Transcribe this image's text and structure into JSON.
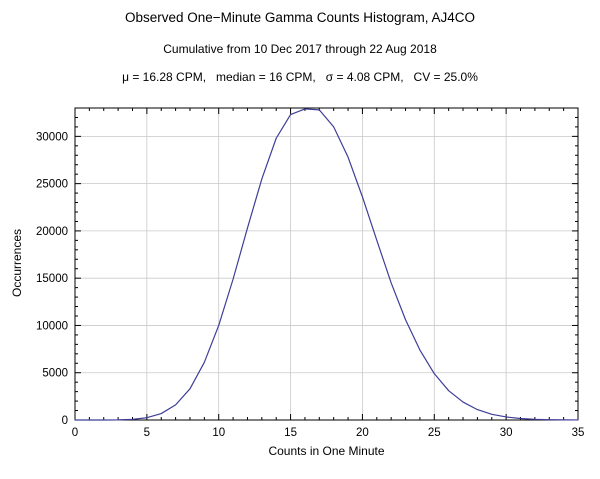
{
  "figure": {
    "background": "#ffffff"
  },
  "chart_data": {
    "type": "line",
    "title": "Observed One−Minute Gamma Counts Histogram, AJ4CO",
    "subtitle": "Cumulative from 10 Dec 2017 through 22 Aug 2018",
    "stats_line": "μ = 16.28 CPM,   median = 16 CPM,   σ = 4.08 CPM,   CV = 25.0%",
    "xlabel": "Counts in One Minute",
    "ylabel": "Occurrences",
    "xlim": [
      0,
      35
    ],
    "ylim": [
      0,
      33000
    ],
    "x_ticks": [
      0,
      5,
      10,
      15,
      20,
      25,
      30,
      35
    ],
    "y_ticks": [
      0,
      5000,
      10000,
      15000,
      20000,
      25000,
      30000
    ],
    "x_minor_step": 1,
    "y_minor_step": 1000,
    "grid": true,
    "legend_position": "none",
    "line_color": "#3f3d99",
    "grid_color": "#c9c9c9",
    "frame_color": "#000000",
    "x": [
      0,
      1,
      2,
      3,
      4,
      5,
      6,
      7,
      8,
      9,
      10,
      11,
      12,
      13,
      14,
      15,
      16,
      17,
      18,
      19,
      20,
      21,
      22,
      23,
      24,
      25,
      26,
      27,
      28,
      29,
      30,
      31,
      32,
      33,
      34,
      35
    ],
    "y": [
      0,
      0,
      3,
      15,
      70,
      240,
      680,
      1600,
      3300,
      6100,
      10000,
      14900,
      20300,
      25500,
      29800,
      32300,
      32900,
      32800,
      31000,
      27800,
      23600,
      19000,
      14500,
      10600,
      7400,
      4900,
      3100,
      1900,
      1100,
      600,
      320,
      160,
      75,
      35,
      15,
      6
    ]
  }
}
